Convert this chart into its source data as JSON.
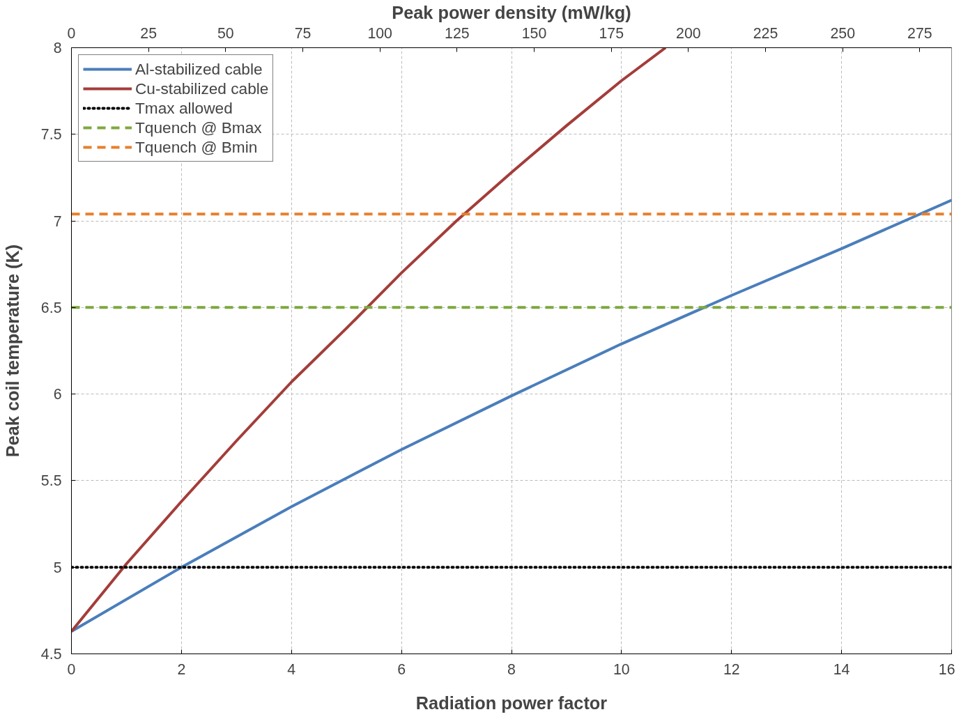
{
  "chart_data": {
    "type": "line",
    "xlabel": "Radiation power factor",
    "ylabel": "Peak coil temperature (K)",
    "x2label": "Peak power density (mW/kg)",
    "xlim": [
      0,
      16
    ],
    "xticks": [
      0,
      2,
      4,
      6,
      8,
      10,
      12,
      14,
      16
    ],
    "ylim": [
      4.5,
      8
    ],
    "yticks": [
      4.5,
      5,
      5.5,
      6,
      6.5,
      7,
      7.5,
      8
    ],
    "x2lim": [
      0,
      285.3
    ],
    "x2ticks": [
      0,
      25,
      50,
      75,
      100,
      125,
      150,
      175,
      200,
      225,
      250,
      275
    ],
    "grid": true,
    "legend": "top left",
    "marker": "none",
    "series": [
      {
        "name": "Al-stabilized cable",
        "color": "#4a7ebb",
        "x": [
          0,
          2,
          4,
          6,
          8,
          10,
          12,
          14,
          16
        ],
        "values": [
          4.63,
          5.0,
          5.35,
          5.68,
          5.99,
          6.29,
          6.57,
          6.84,
          7.12
        ],
        "line_style": "solid"
      },
      {
        "name": "Cu-stabilized cable",
        "color": "#a43d3a",
        "x": [
          0,
          1,
          2,
          3,
          4,
          5,
          6,
          7,
          8,
          9,
          10,
          10.8
        ],
        "values": [
          4.63,
          5.02,
          5.38,
          5.73,
          6.07,
          6.38,
          6.7,
          7.0,
          7.28,
          7.55,
          7.81,
          8.0
        ],
        "line_style": "solid"
      },
      {
        "name": "Tmax allowed",
        "color": "#000000",
        "x": [
          0,
          16
        ],
        "values": [
          5,
          5
        ],
        "line_style": "dotted"
      },
      {
        "name": "Tquench @ Bmax",
        "color": "#7ea83e",
        "x": [
          0,
          16
        ],
        "values": [
          6.5,
          6.5
        ],
        "line_style": "dashed"
      },
      {
        "name": "Tquench @ Bmin",
        "color": "#e6802e",
        "x": [
          0,
          16
        ],
        "values": [
          7.04,
          7.04
        ],
        "line_style": "dashed"
      }
    ]
  }
}
